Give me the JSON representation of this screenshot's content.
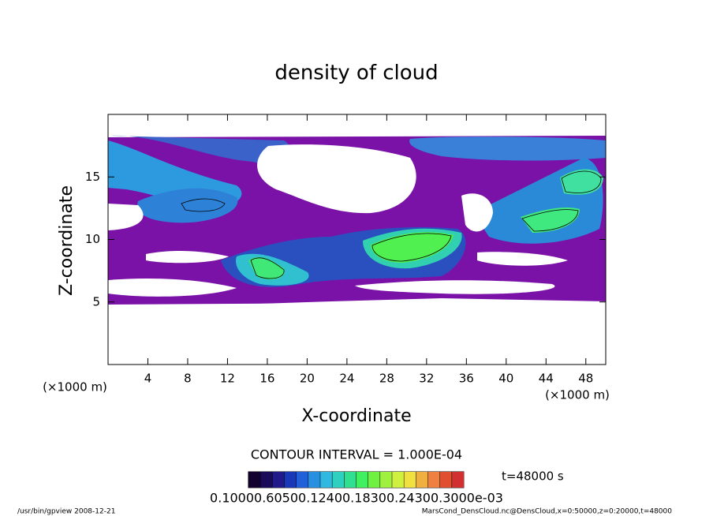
{
  "chart_data": {
    "type": "contour",
    "title": "density of cloud",
    "x_label": "X-coordinate",
    "y_label": "Z-coordinate",
    "x_unit": "(×1000 m)",
    "y_unit": "(×1000 m)",
    "xlim": [
      0,
      50
    ],
    "ylim": [
      0,
      20
    ],
    "xticks": [
      4,
      8,
      12,
      16,
      20,
      24,
      28,
      32,
      36,
      40,
      44,
      48
    ],
    "yticks": [
      5,
      10,
      15
    ],
    "contour_note": "CONTOUR INTERVAL = 1.000E-04",
    "time_label": "t=48000 s",
    "colorbar_labels": "0.10000.60500.12400.18300.24300.3000e-03",
    "colorbar_colors": [
      "#120030",
      "#1a0a5a",
      "#201a8a",
      "#1838b8",
      "#2060d8",
      "#2890e0",
      "#30b8e0",
      "#30d0c0",
      "#30e090",
      "#40f060",
      "#70f040",
      "#a0f040",
      "#d0f040",
      "#f0e040",
      "#f0b040",
      "#f08040",
      "#e05030",
      "#d03030"
    ],
    "footer_left": "/usr/bin/gpview   2008-12-21",
    "footer_right": "MarsCond_DensCloud.nc@DensCloud,x=0:50000,z=0:20000,t=48000"
  }
}
